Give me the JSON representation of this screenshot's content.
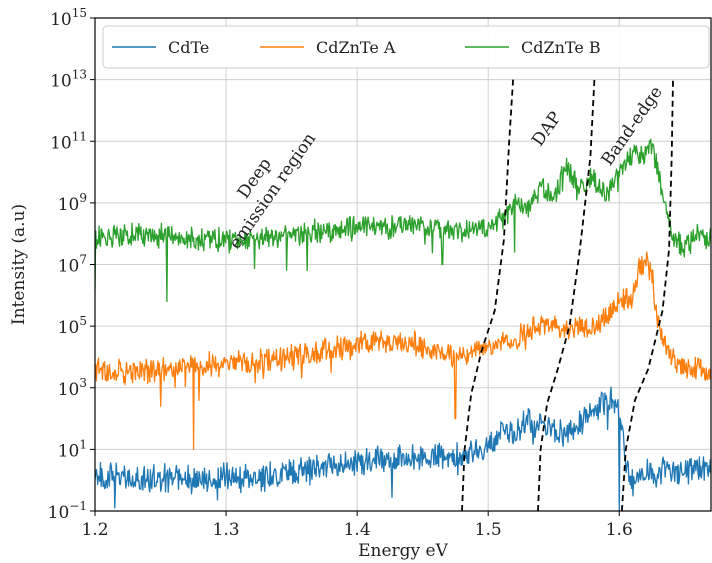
{
  "chart_data": {
    "type": "line",
    "xlabel": "Energy eV",
    "ylabel": "Intensity (a.u)",
    "xlim": [
      1.2,
      1.67
    ],
    "ylim": [
      0.1,
      1000000000000000.0
    ],
    "yscale": "log",
    "grid": true,
    "legend_position": "top",
    "x_ticks": [
      {
        "value": 1.2,
        "label": "1.2"
      },
      {
        "value": 1.3,
        "label": "1.3"
      },
      {
        "value": 1.4,
        "label": "1.4"
      },
      {
        "value": 1.5,
        "label": "1.5"
      },
      {
        "value": 1.6,
        "label": "1.6"
      }
    ],
    "y_ticks": [
      {
        "exp": -1,
        "base": "10",
        "sup": "−1"
      },
      {
        "exp": 1,
        "base": "10",
        "sup": "1"
      },
      {
        "exp": 3,
        "base": "10",
        "sup": "3"
      },
      {
        "exp": 5,
        "base": "10",
        "sup": "5"
      },
      {
        "exp": 7,
        "base": "10",
        "sup": "7"
      },
      {
        "exp": 9,
        "base": "10",
        "sup": "9"
      },
      {
        "exp": 11,
        "base": "10",
        "sup": "11"
      },
      {
        "exp": 13,
        "base": "10",
        "sup": "13"
      },
      {
        "exp": 15,
        "base": "10",
        "sup": "15"
      }
    ],
    "series": [
      {
        "name": "CdTe",
        "color": "#1f77b4",
        "x": [
          1.2,
          1.22,
          1.24,
          1.26,
          1.28,
          1.3,
          1.32,
          1.34,
          1.36,
          1.38,
          1.4,
          1.42,
          1.44,
          1.46,
          1.48,
          1.49,
          1.5,
          1.505,
          1.51,
          1.52,
          1.53,
          1.535,
          1.54,
          1.55,
          1.56,
          1.57,
          1.58,
          1.59,
          1.595,
          1.6,
          1.605,
          1.61,
          1.62,
          1.63,
          1.64,
          1.65,
          1.66,
          1.67
        ],
        "log10_y": [
          0.2,
          0.1,
          0.0,
          0.1,
          0.0,
          0.1,
          0.0,
          0.2,
          0.3,
          0.5,
          0.6,
          0.7,
          0.7,
          0.8,
          0.8,
          0.9,
          1.1,
          1.3,
          1.8,
          1.4,
          2.0,
          1.6,
          1.8,
          1.6,
          1.5,
          1.9,
          2.3,
          2.5,
          2.8,
          2.2,
          0.6,
          0.0,
          0.2,
          0.3,
          0.3,
          0.3,
          0.4,
          0.3
        ],
        "noise": 0.35,
        "dips": [
          {
            "x": 1.215,
            "log10_y": -0.9
          },
          {
            "x": 1.6,
            "log10_y": -1.0
          }
        ]
      },
      {
        "name": "CdZnTe A",
        "color": "#ff7f0e",
        "x": [
          1.2,
          1.22,
          1.24,
          1.26,
          1.28,
          1.3,
          1.32,
          1.34,
          1.36,
          1.38,
          1.4,
          1.42,
          1.44,
          1.46,
          1.48,
          1.49,
          1.5,
          1.51,
          1.52,
          1.53,
          1.54,
          1.55,
          1.56,
          1.57,
          1.58,
          1.59,
          1.6,
          1.61,
          1.615,
          1.62,
          1.625,
          1.63,
          1.64,
          1.65,
          1.66,
          1.67
        ],
        "log10_y": [
          3.6,
          3.5,
          3.5,
          3.6,
          3.7,
          3.8,
          3.8,
          3.9,
          4.1,
          4.3,
          4.4,
          4.5,
          4.5,
          4.2,
          4.0,
          4.2,
          4.3,
          4.6,
          4.5,
          4.8,
          5.0,
          5.1,
          4.8,
          5.0,
          4.9,
          5.3,
          5.8,
          5.9,
          6.8,
          7.1,
          6.6,
          5.0,
          3.9,
          3.6,
          3.6,
          3.5
        ],
        "noise": 0.3,
        "dips": [
          {
            "x": 1.275,
            "log10_y": 1.0
          },
          {
            "x": 1.475,
            "log10_y": 2.0
          },
          {
            "x": 1.25,
            "log10_y": 2.4
          }
        ]
      },
      {
        "name": "CdZnTe B",
        "color": "#2ca02c",
        "x": [
          1.2,
          1.22,
          1.24,
          1.26,
          1.28,
          1.3,
          1.32,
          1.34,
          1.36,
          1.38,
          1.4,
          1.42,
          1.44,
          1.46,
          1.48,
          1.5,
          1.51,
          1.52,
          1.53,
          1.54,
          1.55,
          1.56,
          1.57,
          1.58,
          1.59,
          1.6,
          1.61,
          1.62,
          1.625,
          1.63,
          1.64,
          1.65,
          1.66,
          1.67
        ],
        "log10_y": [
          7.8,
          7.9,
          8.0,
          7.9,
          7.8,
          7.8,
          7.8,
          7.9,
          8.0,
          8.1,
          8.2,
          8.2,
          8.3,
          8.2,
          8.1,
          8.2,
          8.5,
          9.0,
          8.8,
          9.6,
          9.2,
          10.1,
          9.5,
          9.8,
          9.2,
          10.0,
          10.6,
          10.5,
          11.0,
          9.8,
          8.0,
          7.5,
          8.0,
          7.8
        ],
        "noise": 0.3,
        "dips": [
          {
            "x": 1.2,
            "log10_y": 6.2
          },
          {
            "x": 1.255,
            "log10_y": 5.8
          },
          {
            "x": 1.465,
            "log10_y": 7.0
          },
          {
            "x": 1.52,
            "log10_y": 7.4
          }
        ]
      }
    ],
    "boundaries": [
      {
        "x": [
          1.48,
          1.482,
          1.487,
          1.495,
          1.505,
          1.512,
          1.516,
          1.519
        ],
        "log10_y": [
          -1,
          1,
          2.8,
          4.2,
          5.5,
          7.8,
          11,
          13
        ]
      },
      {
        "x": [
          1.538,
          1.54,
          1.545,
          1.553,
          1.562,
          1.57,
          1.578,
          1.581
        ],
        "log10_y": [
          -1,
          1,
          2.5,
          3.6,
          5.0,
          7.5,
          10.5,
          13
        ]
      },
      {
        "x": [
          1.602,
          1.605,
          1.612,
          1.622,
          1.633,
          1.638,
          1.64,
          1.641
        ],
        "log10_y": [
          -1,
          1,
          2.6,
          3.6,
          5.5,
          7.5,
          10.5,
          13
        ]
      }
    ],
    "annotations": [
      {
        "lines": [
          "Deep",
          "emission region"
        ],
        "x": 1.325,
        "log10_y": 9.7,
        "rotation": -55
      },
      {
        "lines": [
          "DAP"
        ],
        "x": 1.548,
        "log10_y": 11.3,
        "rotation": -55
      },
      {
        "lines": [
          "Band-edge"
        ],
        "x": 1.613,
        "log10_y": 11.4,
        "rotation": -55
      }
    ]
  }
}
